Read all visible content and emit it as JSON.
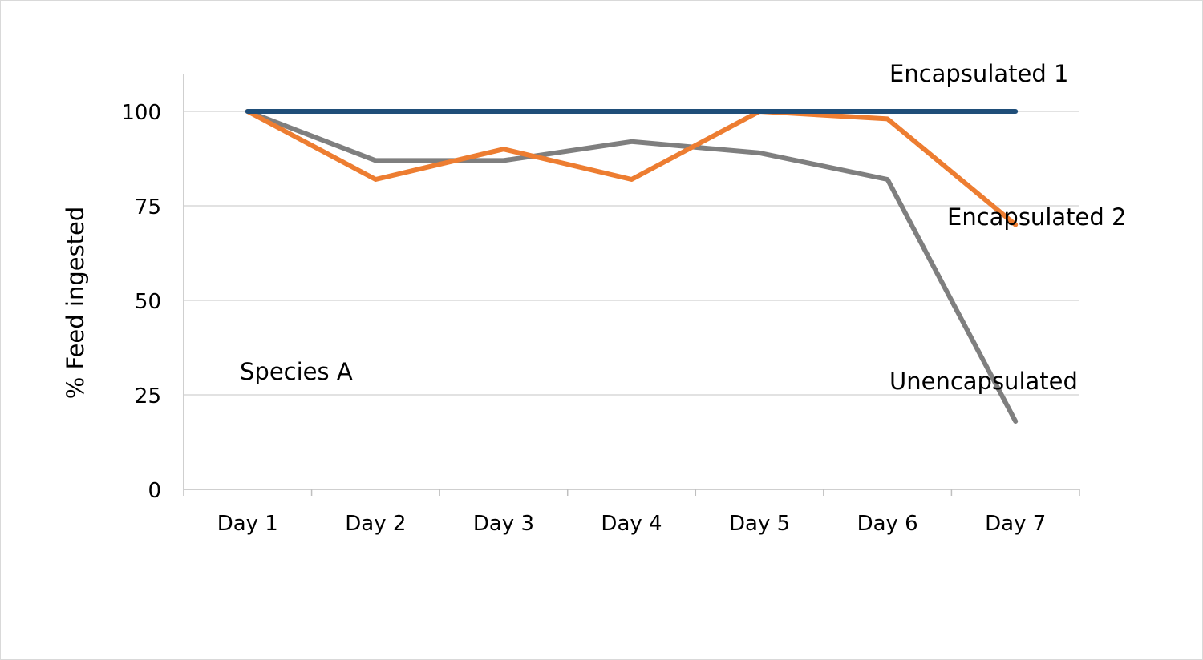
{
  "chart_data": {
    "type": "line",
    "title": "",
    "xlabel": "",
    "ylabel": "% Feed ingested",
    "categories": [
      "Day 1",
      "Day 2",
      "Day 3",
      "Day 4",
      "Day 5",
      "Day 6",
      "Day 7"
    ],
    "ylim": [
      0,
      110
    ],
    "yticks": [
      0,
      25,
      50,
      75,
      100
    ],
    "grid": true,
    "legend": "none",
    "series": [
      {
        "name": "Encapsulated 1",
        "color": "#1f4e79",
        "values": [
          100,
          100,
          100,
          100,
          100,
          100,
          100
        ]
      },
      {
        "name": "Encapsulated 2",
        "color": "#ed7d31",
        "values": [
          100,
          82,
          90,
          82,
          100,
          98,
          70
        ]
      },
      {
        "name": "Unencapsulated",
        "color": "#7f7f7f",
        "values": [
          100,
          87,
          87,
          92,
          89,
          82,
          18
        ]
      }
    ],
    "annotations": {
      "species": "Species A",
      "encapsulated_1": "Encapsulated 1",
      "encapsulated_2": "Encapsulated 2",
      "unencapsulated": "Unencapsulated"
    }
  }
}
